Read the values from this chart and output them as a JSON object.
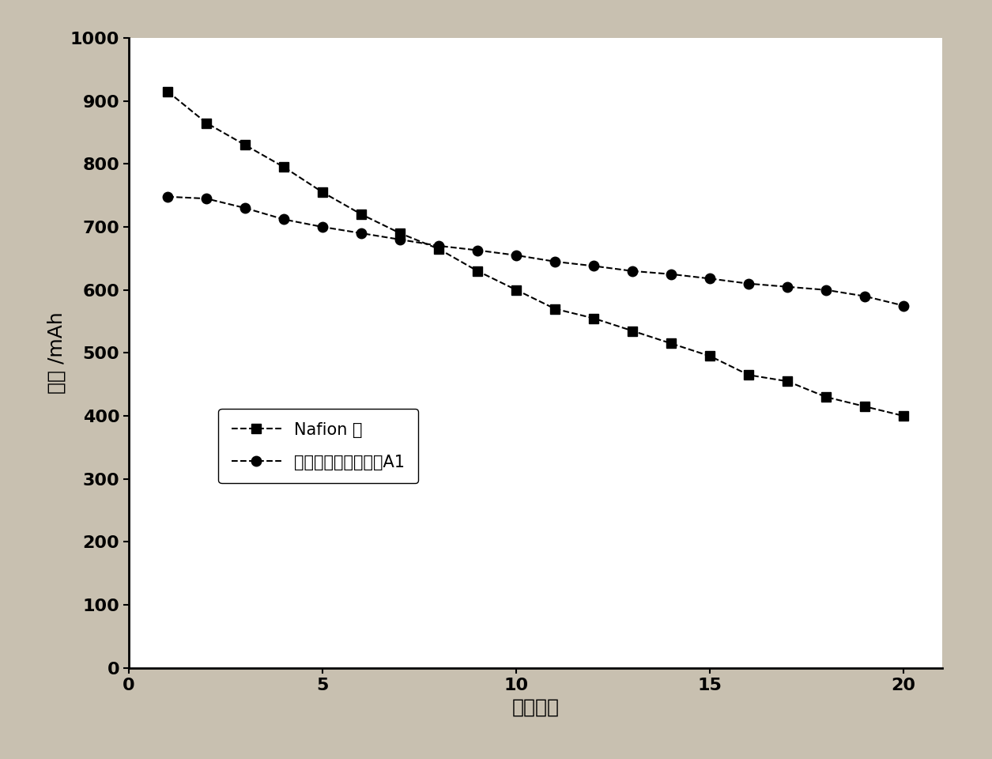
{
  "nafion_x": [
    1,
    2,
    3,
    4,
    5,
    6,
    7,
    8,
    9,
    10,
    11,
    12,
    13,
    14,
    15,
    16,
    17,
    18,
    19,
    20
  ],
  "nafion_y": [
    915,
    865,
    830,
    795,
    755,
    720,
    690,
    665,
    630,
    600,
    570,
    555,
    535,
    515,
    495,
    465,
    455,
    430,
    415,
    400
  ],
  "a1_x": [
    1,
    2,
    3,
    4,
    5,
    6,
    7,
    8,
    9,
    10,
    11,
    12,
    13,
    14,
    15,
    16,
    17,
    18,
    19,
    20
  ],
  "a1_y": [
    748,
    745,
    730,
    712,
    700,
    690,
    680,
    670,
    663,
    655,
    645,
    638,
    630,
    625,
    618,
    610,
    605,
    600,
    590,
    575
  ],
  "xlabel": "循环次数",
  "ylabel": "容量 /mAh",
  "xlim": [
    0,
    21
  ],
  "ylim": [
    0,
    1000
  ],
  "xticks": [
    0,
    5,
    10,
    15,
    20
  ],
  "yticks": [
    0,
    100,
    200,
    300,
    400,
    500,
    600,
    700,
    800,
    900,
    1000
  ],
  "legend1": "Nafion 膜",
  "legend2": "全钒液流电池用隔膜A1",
  "line_color": "#000000",
  "outer_bg": "#c8c0b8",
  "plot_bg": "#ffffff"
}
